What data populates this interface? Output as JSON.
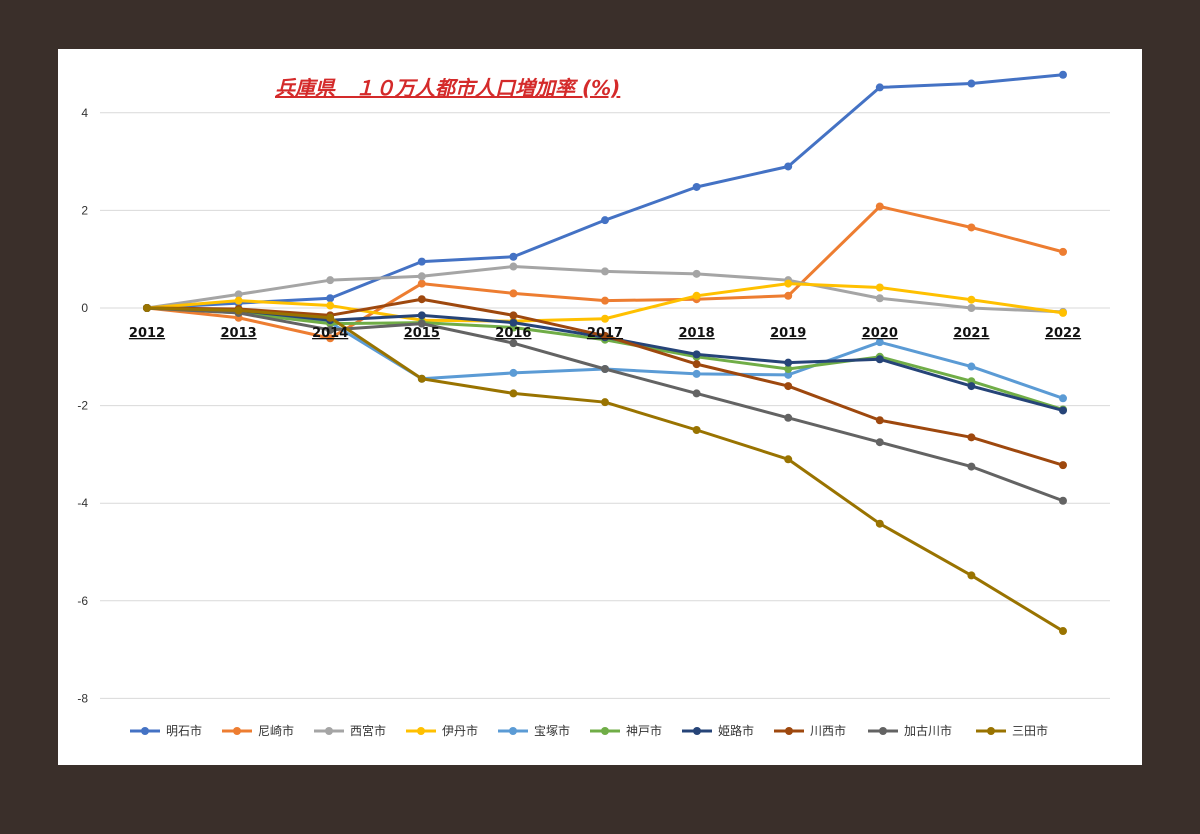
{
  "chart_data": {
    "type": "line",
    "title": "兵庫県　１０万人都市人口増加率 (%)",
    "xlabel": "",
    "ylabel": "",
    "x": [
      "2012",
      "2013",
      "2014",
      "2015",
      "2016",
      "2017",
      "2018",
      "2019",
      "2020",
      "2021",
      "2022"
    ],
    "ylim": [
      -8,
      4.8
    ],
    "yticks": [
      4,
      2,
      0,
      -2,
      -4,
      -6,
      -8
    ],
    "grid": true,
    "legend": "bottom",
    "series": [
      {
        "name": "明石市",
        "color": "#4472c4",
        "values": [
          0,
          0.1,
          0.2,
          0.95,
          1.05,
          1.8,
          2.48,
          2.9,
          4.52,
          4.6,
          4.78
        ]
      },
      {
        "name": "尼崎市",
        "color": "#ed7d31",
        "values": [
          0,
          -0.2,
          -0.62,
          0.5,
          0.3,
          0.15,
          0.18,
          0.25,
          2.08,
          1.65,
          1.15
        ]
      },
      {
        "name": "西宮市",
        "color": "#a5a5a5",
        "values": [
          0,
          0.28,
          0.57,
          0.65,
          0.85,
          0.75,
          0.7,
          0.57,
          0.2,
          0.0,
          -0.08
        ]
      },
      {
        "name": "伊丹市",
        "color": "#ffc000",
        "values": [
          0,
          0.15,
          0.05,
          -0.25,
          -0.27,
          -0.22,
          0.25,
          0.5,
          0.42,
          0.17,
          -0.1
        ]
      },
      {
        "name": "宝塚市",
        "color": "#5b9bd5",
        "values": [
          0,
          -0.05,
          -0.3,
          -1.45,
          -1.33,
          -1.25,
          -1.35,
          -1.37,
          -0.7,
          -1.2,
          -1.85
        ]
      },
      {
        "name": "神戸市",
        "color": "#70ad47",
        "values": [
          0,
          -0.1,
          -0.32,
          -0.3,
          -0.4,
          -0.65,
          -1.0,
          -1.25,
          -1.0,
          -1.5,
          -2.08
        ]
      },
      {
        "name": "姫路市",
        "color": "#264478",
        "values": [
          0,
          -0.05,
          -0.25,
          -0.15,
          -0.3,
          -0.6,
          -0.95,
          -1.12,
          -1.05,
          -1.6,
          -2.1
        ]
      },
      {
        "name": "川西市",
        "color": "#9e480e",
        "values": [
          0,
          -0.02,
          -0.15,
          0.18,
          -0.15,
          -0.57,
          -1.15,
          -1.6,
          -2.3,
          -2.65,
          -3.22
        ]
      },
      {
        "name": "加古川市",
        "color": "#636363",
        "values": [
          0,
          -0.1,
          -0.45,
          -0.32,
          -0.72,
          -1.25,
          -1.75,
          -2.25,
          -2.75,
          -3.25,
          -3.95
        ]
      },
      {
        "name": "三田市",
        "color": "#997300",
        "values": [
          0,
          -0.05,
          -0.2,
          -1.45,
          -1.75,
          -1.93,
          -2.5,
          -3.1,
          -4.42,
          -5.48,
          -6.62
        ]
      }
    ]
  }
}
